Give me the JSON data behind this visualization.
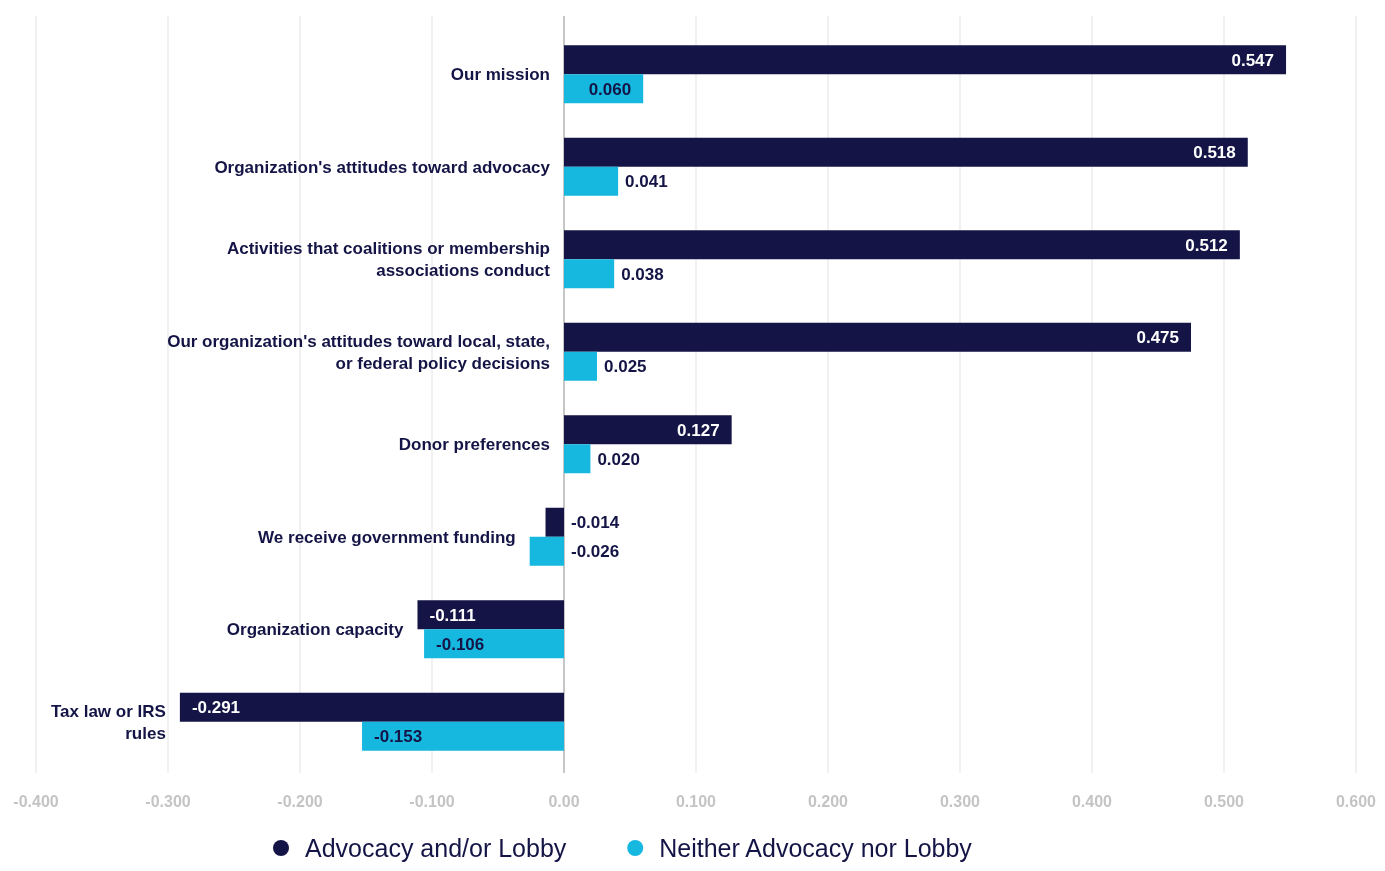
{
  "chart_data": {
    "type": "bar",
    "orientation": "horizontal",
    "categories": [
      "Our mission",
      "Organization's attitudes toward advocacy",
      "Activities that coalitions or membership associations conduct",
      "Our organization's attitudes toward local, state, or federal policy decisions",
      "Donor preferences",
      "We receive government funding",
      "Organization capacity",
      "Tax law or IRS rules"
    ],
    "series": [
      {
        "name": "Advocacy and/or Lobby",
        "color": "#141446",
        "values": [
          0.547,
          0.518,
          0.512,
          0.475,
          0.127,
          -0.014,
          -0.111,
          -0.291
        ],
        "value_labels": [
          "0.547",
          "0.518",
          "0.512",
          "0.475",
          "0.127",
          "-0.014",
          "-0.111",
          "-0.291"
        ]
      },
      {
        "name": "Neither Advocacy nor Lobby",
        "color": "#16b8e0",
        "values": [
          0.06,
          0.041,
          0.038,
          0.025,
          0.02,
          -0.026,
          -0.106,
          -0.153
        ],
        "value_labels": [
          "0.060",
          "0.041",
          "0.038",
          "0.025",
          "0.020",
          "-0.026",
          "-0.106",
          "-0.153"
        ]
      }
    ],
    "xlim": [
      -0.4,
      0.6
    ],
    "xticks": [
      {
        "value": -0.4,
        "label": "-0.400"
      },
      {
        "value": -0.3,
        "label": "-0.300"
      },
      {
        "value": -0.2,
        "label": "-0.200"
      },
      {
        "value": -0.1,
        "label": "-0.100"
      },
      {
        "value": 0,
        "label": "0.00"
      },
      {
        "value": 0.1,
        "label": "0.100"
      },
      {
        "value": 0.2,
        "label": "0.200"
      },
      {
        "value": 0.3,
        "label": "0.300"
      },
      {
        "value": 0.4,
        "label": "0.400"
      },
      {
        "value": 0.5,
        "label": "0.500"
      },
      {
        "value": 0.6,
        "label": "0.600"
      }
    ],
    "grid": "x",
    "legend": "bottom"
  }
}
